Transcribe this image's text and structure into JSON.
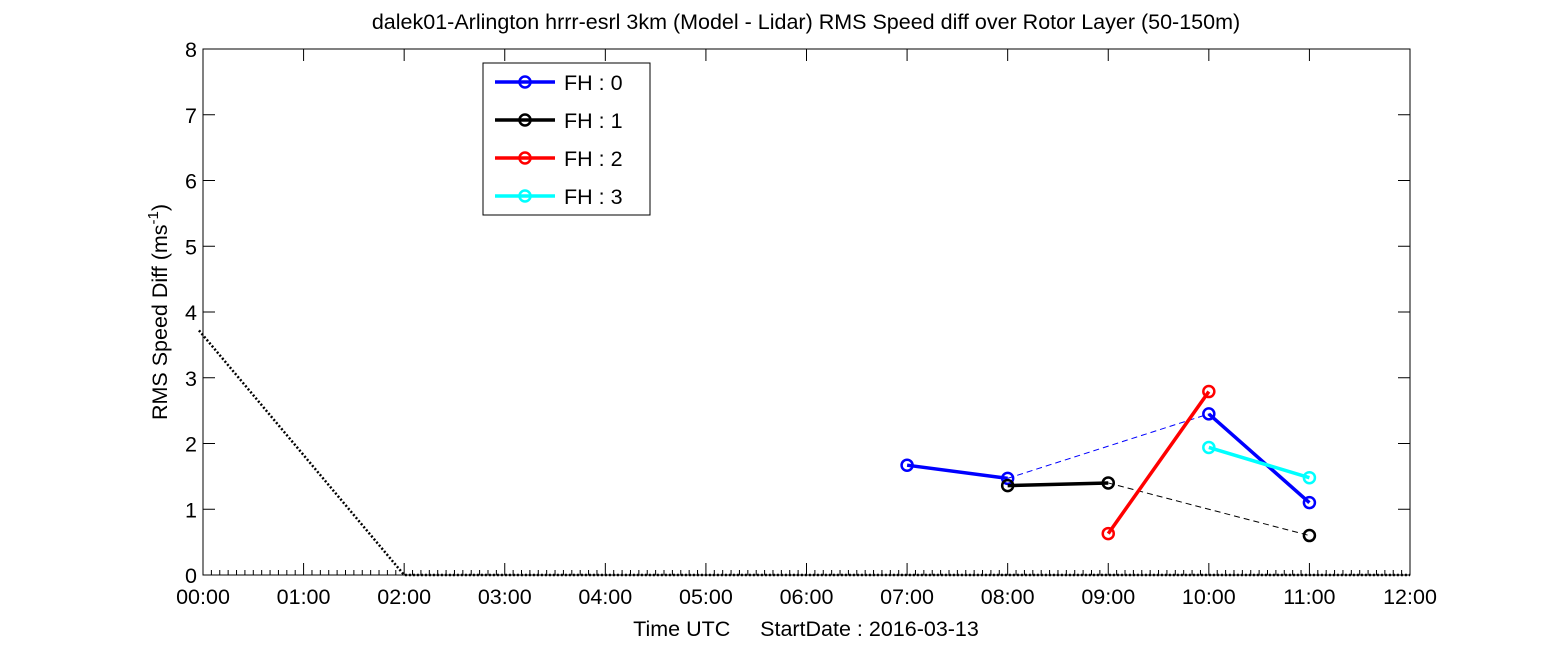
{
  "chart_data": {
    "type": "line",
    "title": "dalek01-Arlington hrrr-esrl 3km (Model - Lidar) RMS Speed diff over Rotor Layer (50-150m)",
    "xlabel": "Time UTC     StartDate : 2016-03-13",
    "ylabel_main": "RMS Speed Diff (ms",
    "ylabel_sup": "-1",
    "ylabel_close": ")",
    "xlim": [
      0,
      12
    ],
    "ylim": [
      0,
      8
    ],
    "xticks": [
      0,
      1,
      2,
      3,
      4,
      5,
      6,
      7,
      8,
      9,
      10,
      11,
      12
    ],
    "xtick_labels": [
      "00:00",
      "01:00",
      "02:00",
      "03:00",
      "04:00",
      "05:00",
      "06:00",
      "07:00",
      "08:00",
      "09:00",
      "10:00",
      "11:00",
      "12:00"
    ],
    "yticks": [
      0,
      1,
      2,
      3,
      4,
      5,
      6,
      7,
      8
    ],
    "ytick_labels": [
      "0",
      "1",
      "2",
      "3",
      "4",
      "5",
      "6",
      "7",
      "8"
    ],
    "grid": false,
    "legend_position": "top-left",
    "series": [
      {
        "name": "FH : 0",
        "color": "#0000ff",
        "x": [
          7,
          8,
          10,
          11
        ],
        "y": [
          1.67,
          1.47,
          2.45,
          1.1
        ],
        "solid_segments": [
          [
            0,
            1
          ],
          [
            2,
            3
          ]
        ],
        "dashed_segments": [
          [
            1,
            2
          ]
        ]
      },
      {
        "name": "FH : 1",
        "color": "#000000",
        "x": [
          8,
          9,
          11
        ],
        "y": [
          1.36,
          1.4,
          0.6
        ],
        "solid_segments": [
          [
            0,
            1
          ]
        ],
        "dashed_segments": [
          [
            1,
            2
          ]
        ]
      },
      {
        "name": "FH : 2",
        "color": "#ff0000",
        "x": [
          9,
          10
        ],
        "y": [
          0.63,
          2.79
        ],
        "solid_segments": [
          [
            0,
            1
          ]
        ],
        "dashed_segments": []
      },
      {
        "name": "FH : 3",
        "color": "#00ffff",
        "x": [
          10,
          11
        ],
        "y": [
          1.94,
          1.48
        ],
        "solid_segments": [
          [
            0,
            1
          ]
        ],
        "dashed_segments": []
      }
    ],
    "dotted_line": {
      "color": "#000000",
      "x": [
        -0.04,
        2.0,
        12
      ],
      "y": [
        3.72,
        0,
        0
      ]
    }
  }
}
